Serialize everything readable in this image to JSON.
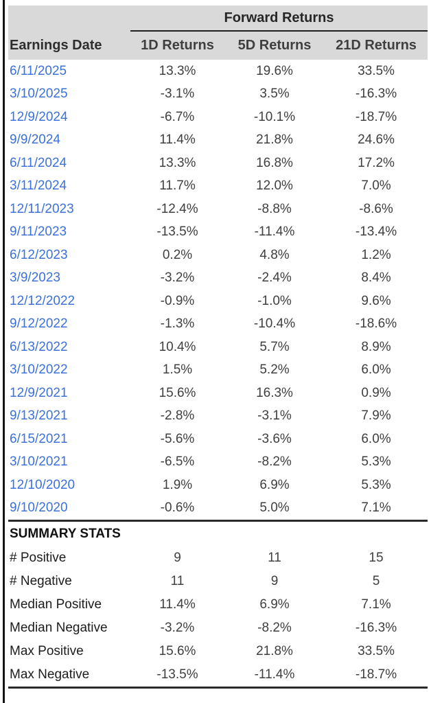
{
  "colors": {
    "header_bg": "#d9d9d9",
    "date_link": "#3b70dd",
    "value_text": "#3f3f3f",
    "rule": "#2a2a2a",
    "window_border": "#141414"
  },
  "chart_data": {
    "type": "table",
    "title": "Forward Returns",
    "summary_title": "SUMMARY STATS",
    "columns": [
      "Earnings Date",
      "1D Returns",
      "5D Returns",
      "21D Returns"
    ],
    "rows": [
      [
        "6/11/2025",
        "13.3%",
        "19.6%",
        "33.5%"
      ],
      [
        "3/10/2025",
        "-3.1%",
        "3.5%",
        "-16.3%"
      ],
      [
        "12/9/2024",
        "-6.7%",
        "-10.1%",
        "-18.7%"
      ],
      [
        "9/9/2024",
        "11.4%",
        "21.8%",
        "24.6%"
      ],
      [
        "6/11/2024",
        "13.3%",
        "16.8%",
        "17.2%"
      ],
      [
        "3/11/2024",
        "11.7%",
        "12.0%",
        "7.0%"
      ],
      [
        "12/11/2023",
        "-12.4%",
        "-8.8%",
        "-8.6%"
      ],
      [
        "9/11/2023",
        "-13.5%",
        "-11.4%",
        "-13.4%"
      ],
      [
        "6/12/2023",
        "0.2%",
        "4.8%",
        "1.2%"
      ],
      [
        "3/9/2023",
        "-3.2%",
        "-2.4%",
        "8.4%"
      ],
      [
        "12/12/2022",
        "-0.9%",
        "-1.0%",
        "9.6%"
      ],
      [
        "9/12/2022",
        "-1.3%",
        "-10.4%",
        "-18.6%"
      ],
      [
        "6/13/2022",
        "10.4%",
        "5.7%",
        "8.9%"
      ],
      [
        "3/10/2022",
        "1.5%",
        "5.2%",
        "6.0%"
      ],
      [
        "12/9/2021",
        "15.6%",
        "16.3%",
        "0.9%"
      ],
      [
        "9/13/2021",
        "-2.8%",
        "-3.1%",
        "7.9%"
      ],
      [
        "6/15/2021",
        "-5.6%",
        "-3.6%",
        "6.0%"
      ],
      [
        "3/10/2021",
        "-6.5%",
        "-8.2%",
        "5.3%"
      ],
      [
        "12/10/2020",
        "1.9%",
        "6.9%",
        "5.3%"
      ],
      [
        "9/10/2020",
        "-0.6%",
        "5.0%",
        "7.1%"
      ]
    ],
    "summary_rows": [
      [
        "# Positive",
        "9",
        "11",
        "15"
      ],
      [
        "# Negative",
        "11",
        "9",
        "5"
      ],
      [
        "Median Positive",
        "11.4%",
        "6.9%",
        "7.1%"
      ],
      [
        "Median Negative",
        "-3.2%",
        "-8.2%",
        "-16.3%"
      ],
      [
        "Max Positive",
        "15.6%",
        "21.8%",
        "33.5%"
      ],
      [
        "Max Negative",
        "-13.5%",
        "-11.4%",
        "-18.7%"
      ]
    ]
  }
}
